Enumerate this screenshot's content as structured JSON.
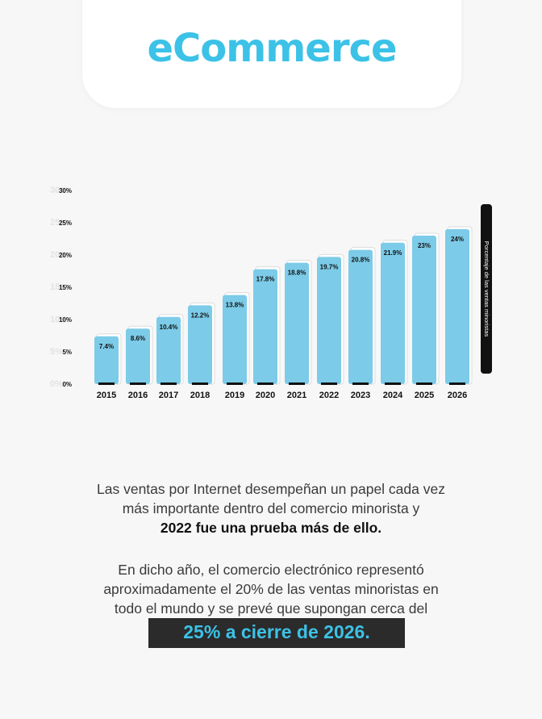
{
  "header": {
    "title": "eCommerce"
  },
  "chart_data": {
    "type": "bar",
    "categories": [
      "2015",
      "2016",
      "2017",
      "2018",
      "2019",
      "2020",
      "2021",
      "2022",
      "2023",
      "2024",
      "2025",
      "2026"
    ],
    "values": [
      7.4,
      8.6,
      10.4,
      12.2,
      13.8,
      17.8,
      18.8,
      19.7,
      20.8,
      21.9,
      23,
      24
    ],
    "value_labels": [
      "7.4%",
      "8.6%",
      "10.4%",
      "12.2%",
      "13.8%",
      "17.8%",
      "18.8%",
      "19.7%",
      "20.8%",
      "21.9%",
      "23%",
      "24%"
    ],
    "ylim": [
      0,
      30
    ],
    "yticks": [
      0,
      5,
      10,
      15,
      20,
      25,
      30
    ],
    "ytick_labels": [
      "0%",
      "5%",
      "10%",
      "15%",
      "20%",
      "25%",
      "30%"
    ],
    "ylabel": "Porcentaje de las ventas minoristas",
    "grid": false,
    "bar_color": "#7ccbe8",
    "label_color": "#111111"
  },
  "text": {
    "p1_line1": "Las ventas por Internet desempeñan un papel cada vez",
    "p1_line2": "más importante dentro del comercio minorista y",
    "p1_bold": "2022 fue una prueba más de ello.",
    "p2_line1": "En dicho año, el comercio electrónico representó",
    "p2_line2": "aproximadamente el 20% de las ventas minoristas en",
    "p2_line3": "todo el mundo y se prevé que supongan cerca del",
    "highlight": "25% a cierre de 2026."
  },
  "colors": {
    "accent": "#3cc2e7",
    "dark": "#2b2b2b"
  }
}
